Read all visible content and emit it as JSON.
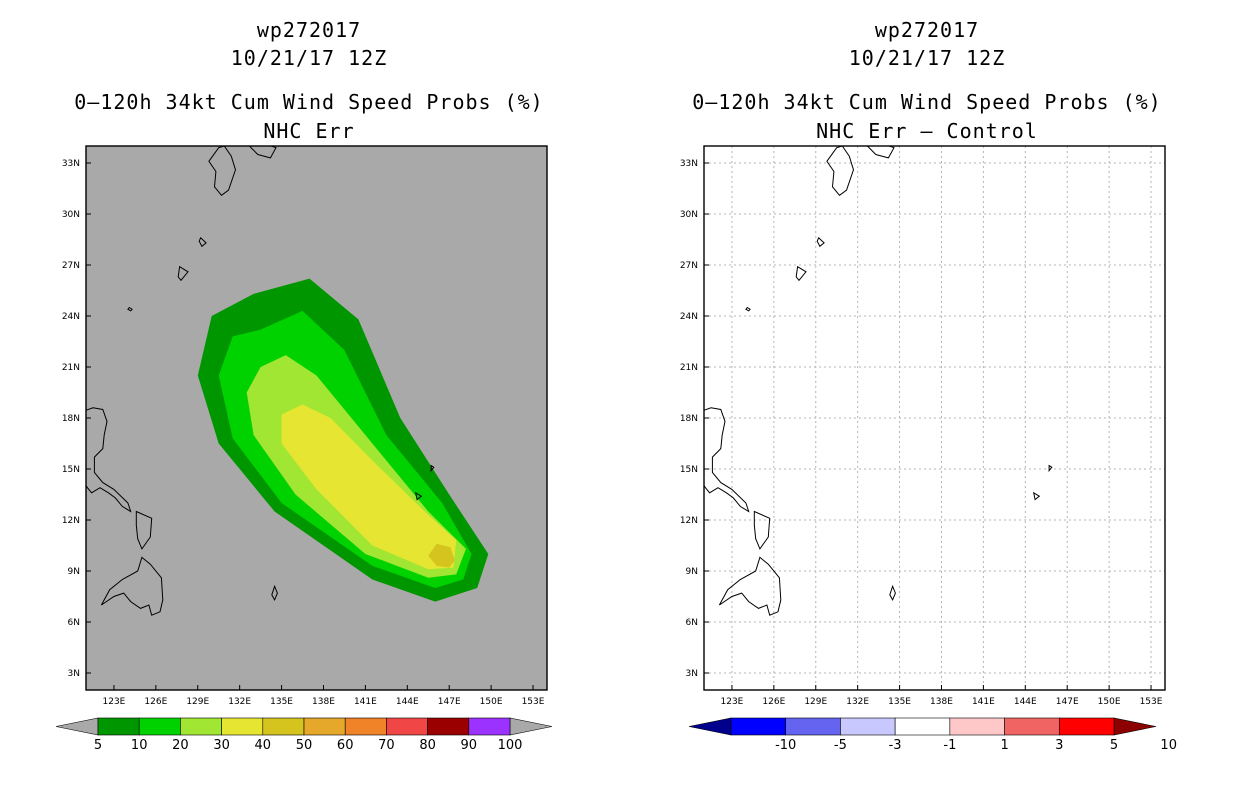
{
  "chart_data": [
    {
      "type": "heatmap",
      "title_lines": [
        "wp272017",
        "10/21/17 12Z"
      ],
      "chart_title": "0–120h 34kt Cum Wind Speed Probs (%)",
      "subtitle": "NHC Err",
      "x_ticks": [
        "123E",
        "126E",
        "129E",
        "132E",
        "135E",
        "138E",
        "141E",
        "144E",
        "147E",
        "150E",
        "153E"
      ],
      "y_ticks": [
        "3N",
        "6N",
        "9N",
        "12N",
        "15N",
        "18N",
        "21N",
        "24N",
        "27N",
        "30N",
        "33N"
      ],
      "xlim": [
        121,
        154
      ],
      "ylim": [
        2,
        34
      ],
      "background_color": "#a9a9a9",
      "colorbar": {
        "labels": [
          "5",
          "10",
          "20",
          "30",
          "40",
          "50",
          "60",
          "70",
          "80",
          "90",
          "100"
        ],
        "colors": [
          "#009600",
          "#00d200",
          "#a0e632",
          "#e6e632",
          "#d6c41e",
          "#e6a82a",
          "#f08228",
          "#f04646",
          "#9b0000",
          "#9b32ff"
        ],
        "under_color": "#a9a9a9",
        "over_color": "#a9a9a9"
      },
      "track_axis": {
        "start": [
          134.8,
          21.5
        ],
        "end": [
          148.1,
          10.1
        ]
      },
      "probability_regions": [
        {
          "level": 5,
          "color": "#009600",
          "shape": [
            [
              133.0,
              25.3
            ],
            [
              137.0,
              26.2
            ],
            [
              140.5,
              23.8
            ],
            [
              143.5,
              18.0
            ],
            [
              147.0,
              13.5
            ],
            [
              149.8,
              10.0
            ],
            [
              149.0,
              8.0
            ],
            [
              146.0,
              7.2
            ],
            [
              141.5,
              8.5
            ],
            [
              134.5,
              12.5
            ],
            [
              130.5,
              16.5
            ],
            [
              129.0,
              20.5
            ],
            [
              130.0,
              24.0
            ]
          ]
        },
        {
          "level": 10,
          "color": "#00d200",
          "shape": [
            [
              133.5,
              23.2
            ],
            [
              136.5,
              24.3
            ],
            [
              139.5,
              22.0
            ],
            [
              142.5,
              17.0
            ],
            [
              146.5,
              13.0
            ],
            [
              148.6,
              10.0
            ],
            [
              148.0,
              8.5
            ],
            [
              146.0,
              8.0
            ],
            [
              141.5,
              9.3
            ],
            [
              135.0,
              13.0
            ],
            [
              131.5,
              16.8
            ],
            [
              130.5,
              20.5
            ],
            [
              131.5,
              22.8
            ]
          ]
        },
        {
          "level": 20,
          "color": "#a0e632",
          "shape": [
            [
              135.3,
              21.7
            ],
            [
              137.5,
              20.5
            ],
            [
              140.5,
              17.5
            ],
            [
              145.5,
              12.5
            ],
            [
              148.2,
              10.3
            ],
            [
              147.5,
              8.8
            ],
            [
              145.5,
              8.6
            ],
            [
              141.0,
              10.0
            ],
            [
              136.0,
              13.5
            ],
            [
              133.0,
              17.0
            ],
            [
              132.5,
              19.5
            ],
            [
              133.5,
              21.0
            ]
          ]
        },
        {
          "level": 30,
          "color": "#e6e632",
          "shape": [
            [
              136.5,
              18.8
            ],
            [
              138.5,
              18.0
            ],
            [
              141.5,
              15.5
            ],
            [
              145.5,
              12.3
            ],
            [
              147.5,
              10.8
            ],
            [
              147.3,
              9.2
            ],
            [
              145.5,
              9.1
            ],
            [
              141.5,
              10.5
            ],
            [
              137.5,
              13.8
            ],
            [
              135.0,
              16.5
            ],
            [
              135.0,
              18.2
            ]
          ]
        },
        {
          "level": 40,
          "color": "#d6c41e",
          "shape": [
            [
              146.1,
              10.6
            ],
            [
              147.1,
              10.4
            ],
            [
              147.4,
              9.6
            ],
            [
              147.0,
              9.2
            ],
            [
              146.1,
              9.3
            ],
            [
              145.5,
              9.9
            ]
          ]
        }
      ]
    },
    {
      "type": "heatmap",
      "title_lines": [
        "wp272017",
        "10/21/17 12Z"
      ],
      "chart_title": "0–120h 34kt Cum Wind Speed Probs (%)",
      "subtitle": "NHC Err – Control",
      "x_ticks": [
        "123E",
        "126E",
        "129E",
        "132E",
        "135E",
        "138E",
        "141E",
        "144E",
        "147E",
        "150E",
        "153E"
      ],
      "y_ticks": [
        "3N",
        "6N",
        "9N",
        "12N",
        "15N",
        "18N",
        "21N",
        "24N",
        "27N",
        "30N",
        "33N"
      ],
      "xlim": [
        121,
        154
      ],
      "ylim": [
        2,
        34
      ],
      "background_color": "#ffffff",
      "grid": true,
      "colorbar": {
        "labels": [
          "-10",
          "-5",
          "-3",
          "-1",
          "1",
          "3",
          "5",
          "10"
        ],
        "colors": [
          "#0000ff",
          "#6464f0",
          "#c8c8ff",
          "#ffffff",
          "#ffc8c8",
          "#f06464",
          "#ff0000"
        ],
        "under_color": "#00008c",
        "over_color": "#8c0000"
      }
    }
  ]
}
